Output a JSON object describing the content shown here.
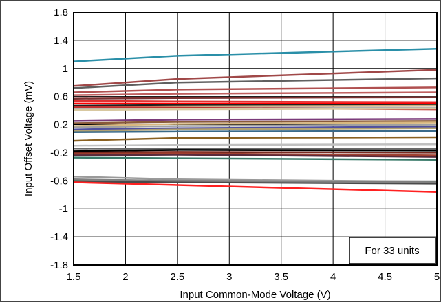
{
  "chart_data": {
    "type": "line",
    "title": "",
    "xlabel": "Input Common-Mode Voltage (V)",
    "ylabel": "Input Offset Voltage (mV)",
    "xlim": [
      1.5,
      5
    ],
    "ylim": [
      -1.8,
      1.8
    ],
    "x_ticks": [
      "1.5",
      "2",
      "2.5",
      "3",
      "3.5",
      "4",
      "4.5",
      "5"
    ],
    "y_ticks": [
      "1.8",
      "1.4",
      "1",
      "0.6",
      "0.2",
      "-0.2",
      "-0.6",
      "-1",
      "-1.4",
      "-1.8"
    ],
    "grid": true,
    "legend": "none",
    "annotation": "For 33 units",
    "x": [
      1.5,
      2.5,
      5
    ],
    "series": [
      {
        "color": "#2a8fa8",
        "values": [
          1.1,
          1.18,
          1.28
        ]
      },
      {
        "color": "#a04848",
        "values": [
          0.75,
          0.85,
          0.98
        ]
      },
      {
        "color": "#606060",
        "values": [
          0.72,
          0.8,
          0.86
        ]
      },
      {
        "color": "#b05050",
        "values": [
          0.66,
          0.7,
          0.73
        ]
      },
      {
        "color": "#c06060",
        "values": [
          0.62,
          0.64,
          0.66
        ]
      },
      {
        "color": "#7a3030",
        "values": [
          0.57,
          0.58,
          0.59
        ]
      },
      {
        "color": "#e03030",
        "values": [
          0.54,
          0.53,
          0.52
        ]
      },
      {
        "color": "#ff0000",
        "values": [
          0.5,
          0.5,
          0.5
        ]
      },
      {
        "color": "#202020",
        "values": [
          0.47,
          0.48,
          0.48
        ]
      },
      {
        "color": "#d0b080",
        "values": [
          0.45,
          0.46,
          0.47
        ]
      },
      {
        "color": "#b0b0b0",
        "values": [
          0.43,
          0.44,
          0.44
        ]
      },
      {
        "color": "#c03030",
        "values": [
          0.45,
          0.44,
          0.42
        ]
      },
      {
        "color": "#d8c8a0",
        "values": [
          0.41,
          0.42,
          0.43
        ]
      },
      {
        "color": "#7a3a7a",
        "values": [
          0.25,
          0.27,
          0.28
        ]
      },
      {
        "color": "#8a5a3a",
        "values": [
          0.22,
          0.24,
          0.25
        ]
      },
      {
        "color": "#d8b880",
        "values": [
          0.18,
          0.21,
          0.23
        ]
      },
      {
        "color": "#a0a0a0",
        "values": [
          0.16,
          0.18,
          0.2
        ]
      },
      {
        "color": "#5050a0",
        "values": [
          0.13,
          0.15,
          0.17
        ]
      },
      {
        "color": "#b0a070",
        "values": [
          0.11,
          0.13,
          0.15
        ]
      },
      {
        "color": "#3a6a8a",
        "values": [
          0.09,
          0.1,
          0.11
        ]
      },
      {
        "color": "#8a6020",
        "values": [
          -0.03,
          0.01,
          0.02
        ]
      },
      {
        "color": "#c0c0c0",
        "values": [
          -0.1,
          -0.09,
          -0.08
        ]
      },
      {
        "color": "#6a6a6a",
        "values": [
          -0.14,
          -0.15,
          -0.15
        ]
      },
      {
        "color": "#000000",
        "values": [
          -0.18,
          -0.16,
          -0.17
        ]
      },
      {
        "color": "#7a2a20",
        "values": [
          -0.2,
          -0.19,
          -0.2
        ]
      },
      {
        "color": "#a04030",
        "values": [
          -0.22,
          -0.21,
          -0.24
        ]
      },
      {
        "color": "#5a2a3a",
        "values": [
          -0.24,
          -0.23,
          -0.26
        ]
      },
      {
        "color": "#3a7a6a",
        "values": [
          -0.27,
          -0.28,
          -0.3
        ]
      },
      {
        "color": "#9a9a9a",
        "values": [
          -0.54,
          -0.58,
          -0.61
        ]
      },
      {
        "color": "#2a6a4a",
        "values": [
          -0.6,
          -0.61,
          -0.62
        ]
      },
      {
        "color": "#4a4a4a",
        "values": [
          -0.61,
          -0.62,
          -0.64
        ]
      },
      {
        "color": "#ff2020",
        "values": [
          -0.62,
          -0.66,
          -0.76
        ]
      },
      {
        "color": "#808080",
        "values": [
          -0.58,
          -0.6,
          -0.62
        ]
      }
    ]
  }
}
